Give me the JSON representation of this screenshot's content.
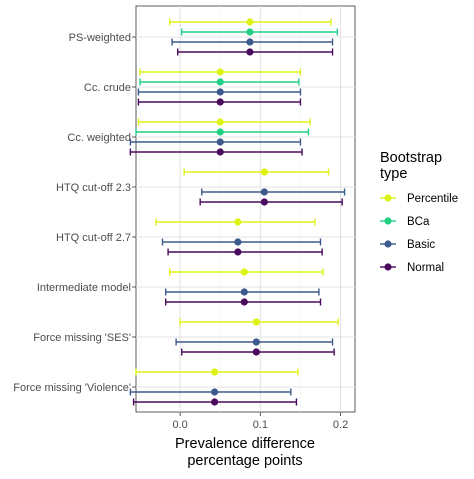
{
  "chart_data": {
    "type": "forest",
    "xlabel": [
      "Prevalence difference",
      "percentage points"
    ],
    "ylabel": "",
    "xlim": [
      -0.055,
      0.218
    ],
    "xticks": [
      0.0,
      0.1,
      0.2
    ],
    "xtick_labels": [
      "0.0",
      "0.1",
      "0.2"
    ],
    "grid": true,
    "legend_position": "right",
    "legend_title": [
      "Bootstrap",
      "type"
    ],
    "series": [
      {
        "name": "Percentile",
        "color": "#dff216"
      },
      {
        "name": "BCa",
        "color": "#23cf84"
      },
      {
        "name": "Basic",
        "color": "#3d5a8c"
      },
      {
        "name": "Normal",
        "color": "#4a0a5e"
      }
    ],
    "categories": [
      "PS-weighted",
      "Cc. crude",
      "Cc. weighted",
      "HTQ cut-off 2.3",
      "HTQ cut-off 2.7",
      "Intermediate model",
      "Force missing 'SES'",
      "Force missing 'Violence'"
    ],
    "estimates": [
      [
        {
          "series": "Percentile",
          "est": 0.087,
          "lo": -0.013,
          "hi": 0.188
        },
        {
          "series": "BCa",
          "est": 0.087,
          "lo": 0.002,
          "hi": 0.196
        },
        {
          "series": "Basic",
          "est": 0.087,
          "lo": -0.01,
          "hi": 0.19
        },
        {
          "series": "Normal",
          "est": 0.087,
          "lo": -0.003,
          "hi": 0.19
        }
      ],
      [
        {
          "series": "Percentile",
          "est": 0.05,
          "lo": -0.05,
          "hi": 0.15
        },
        {
          "series": "BCa",
          "est": 0.05,
          "lo": -0.05,
          "hi": 0.148
        },
        {
          "series": "Basic",
          "est": 0.05,
          "lo": -0.052,
          "hi": 0.15
        },
        {
          "series": "Normal",
          "est": 0.05,
          "lo": -0.052,
          "hi": 0.15
        }
      ],
      [
        {
          "series": "Percentile",
          "est": 0.05,
          "lo": -0.052,
          "hi": 0.162
        },
        {
          "series": "BCa",
          "est": 0.05,
          "lo": -0.055,
          "hi": 0.16
        },
        {
          "series": "Basic",
          "est": 0.05,
          "lo": -0.062,
          "hi": 0.15
        },
        {
          "series": "Normal",
          "est": 0.05,
          "lo": -0.062,
          "hi": 0.152
        }
      ],
      [
        {
          "series": "Percentile",
          "est": 0.105,
          "lo": 0.005,
          "hi": 0.185
        },
        {
          "series": "Basic",
          "est": 0.105,
          "lo": 0.027,
          "hi": 0.205
        },
        {
          "series": "Normal",
          "est": 0.105,
          "lo": 0.025,
          "hi": 0.202
        }
      ],
      [
        {
          "series": "Percentile",
          "est": 0.072,
          "lo": -0.03,
          "hi": 0.168
        },
        {
          "series": "Basic",
          "est": 0.072,
          "lo": -0.022,
          "hi": 0.175
        },
        {
          "series": "Normal",
          "est": 0.072,
          "lo": -0.015,
          "hi": 0.177
        }
      ],
      [
        {
          "series": "Percentile",
          "est": 0.08,
          "lo": -0.013,
          "hi": 0.178
        },
        {
          "series": "Basic",
          "est": 0.08,
          "lo": -0.018,
          "hi": 0.173
        },
        {
          "series": "Normal",
          "est": 0.08,
          "lo": -0.018,
          "hi": 0.175
        }
      ],
      [
        {
          "series": "Percentile",
          "est": 0.095,
          "lo": 0.0,
          "hi": 0.197
        },
        {
          "series": "Basic",
          "est": 0.095,
          "lo": -0.005,
          "hi": 0.19
        },
        {
          "series": "Normal",
          "est": 0.095,
          "lo": 0.002,
          "hi": 0.192
        }
      ],
      [
        {
          "series": "Percentile",
          "est": 0.043,
          "lo": -0.055,
          "hi": 0.147
        },
        {
          "series": "Basic",
          "est": 0.043,
          "lo": -0.062,
          "hi": 0.138
        },
        {
          "series": "Normal",
          "est": 0.043,
          "lo": -0.058,
          "hi": 0.145
        }
      ]
    ]
  }
}
